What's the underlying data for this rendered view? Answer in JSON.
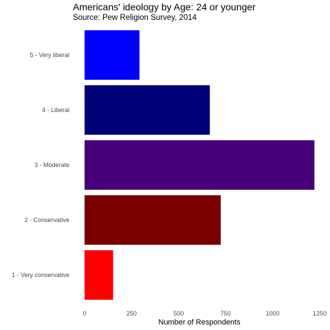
{
  "chart_data": {
    "type": "bar",
    "orientation": "horizontal",
    "title": "Americans' ideology by Age: 24 or younger",
    "subtitle": "Source: Pew Religion Survey, 2014",
    "xlabel": "Number of Respondents",
    "ylabel": "",
    "categories": [
      "1 - Very conservative",
      "2 - Conservative",
      "3 - Moderate",
      "4 - Liberal",
      "5 - Very liberal"
    ],
    "values": [
      152,
      724,
      1222,
      666,
      292
    ],
    "colors": [
      "#ff0000",
      "#7a0000",
      "#47007a",
      "#000078",
      "#0000ff"
    ],
    "xlim": [
      0,
      1250
    ],
    "xticks": [
      0,
      250,
      500,
      750,
      1000,
      1250
    ],
    "grid": false,
    "legend": "none"
  }
}
